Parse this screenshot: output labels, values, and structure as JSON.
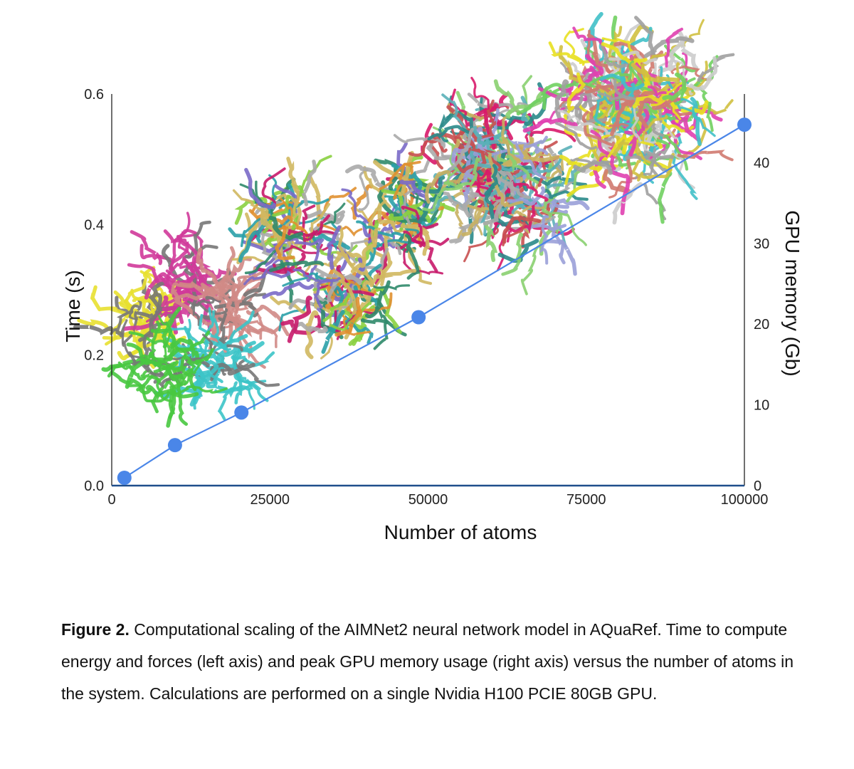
{
  "chart_data": {
    "type": "line",
    "xlabel": "Number of atoms",
    "ylabel": "Time (s)",
    "y2label": "GPU memory (Gb)",
    "xlim": [
      0,
      100000
    ],
    "ylim": [
      0,
      0.6
    ],
    "y2lim": [
      0,
      48.5
    ],
    "x_ticks": [
      "0",
      "25000",
      "50000",
      "75000",
      "100000"
    ],
    "x_tick_values": [
      0,
      25000,
      50000,
      75000,
      100000
    ],
    "y_ticks": [
      "0.0",
      "0.2",
      "0.4",
      "0.6"
    ],
    "y_tick_values": [
      0,
      0.2,
      0.4,
      0.6
    ],
    "y2_ticks": [
      "0",
      "10",
      "20",
      "30",
      "40"
    ],
    "y2_tick_values": [
      0,
      10,
      20,
      30,
      40
    ],
    "grid": false,
    "series": [
      {
        "color": "#4a86e8",
        "x": [
          2000,
          10000,
          20500,
          48500,
          100000
        ],
        "y": [
          0.012,
          0.062,
          0.112,
          0.258,
          0.553
        ]
      }
    ],
    "images": [
      "protein-pentamer",
      "protein-trimer",
      "protein-complex-large",
      "protein-complex-largest"
    ]
  },
  "caption": {
    "label": "Figure 2.",
    "text": " Computational scaling of the AIMNet2 neural network model in AQuaRef. Time to compute energy and forces (left axis) and peak GPU memory usage (right axis) versus the number of atoms in the system. Calculations are performed on a single Nvidia H100 PCIE 80GB GPU."
  }
}
